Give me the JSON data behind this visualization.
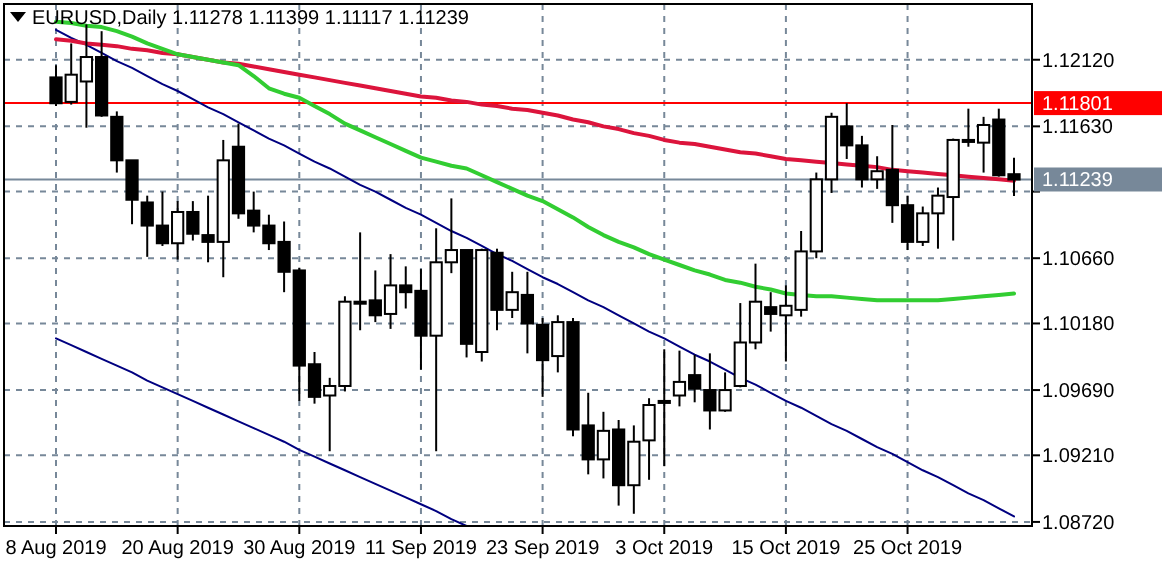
{
  "chart_data": {
    "type": "candlestick",
    "title": "EURUSD,Daily 1.11278 1.11399 1.11117 1.11239",
    "categories": [
      "8 Aug 2019",
      null,
      null,
      null,
      null,
      null,
      null,
      null,
      "20 Aug 2019",
      null,
      null,
      null,
      null,
      null,
      null,
      null,
      "30 Aug 2019",
      null,
      null,
      null,
      null,
      null,
      null,
      null,
      "11 Sep 2019",
      null,
      null,
      null,
      null,
      null,
      null,
      null,
      "23 Sep 2019",
      null,
      null,
      null,
      null,
      null,
      null,
      null,
      "3 Oct 2019",
      null,
      null,
      null,
      null,
      null,
      null,
      null,
      "15 Oct 2019",
      null,
      null,
      null,
      null,
      null,
      null,
      null,
      "25 Oct 2019",
      null,
      null,
      null,
      null,
      null,
      null,
      null
    ],
    "ylim": [
      1.0869,
      1.1253
    ],
    "yticks": [
      {
        "value": 1.0872,
        "label": "1.08720"
      },
      {
        "value": 1.0921,
        "label": "1.09210"
      },
      {
        "value": 1.0969,
        "label": "1.09690"
      },
      {
        "value": 1.1018,
        "label": "1.10180"
      },
      {
        "value": 1.1066,
        "label": "1.10660"
      },
      {
        "value": 1.1115,
        "label": null
      },
      {
        "value": 1.1163,
        "label": "1.11630"
      },
      {
        "value": 1.1212,
        "label": "1.12120"
      }
    ],
    "grid": true,
    "ref_lines": [
      {
        "axis": "y",
        "value": 1.11801,
        "label": "1.11801",
        "color": "#ff0000"
      },
      {
        "axis": "y",
        "value": 1.11239,
        "label": "1.11239",
        "color": "#778899"
      }
    ],
    "series": [
      {
        "type": "line",
        "color": "#000080",
        "values": [
          1.1234,
          1.1228,
          1.1223,
          1.1217,
          1.1211,
          1.1206,
          1.12,
          1.1194,
          1.1189,
          1.1183,
          1.1177,
          1.1172,
          1.1166,
          1.116,
          1.1154,
          1.1149,
          1.1143,
          1.1137,
          1.1132,
          1.1126,
          1.112,
          1.1115,
          1.1109,
          1.1103,
          1.1098,
          1.1092,
          1.1086,
          1.1081,
          1.1075,
          1.1069,
          1.1064,
          1.1058,
          1.1052,
          1.1047,
          1.1041,
          1.1035,
          1.103,
          1.1024,
          1.1018,
          1.1012,
          1.1007,
          1.1001,
          1.0995,
          1.099,
          1.0984,
          1.0978,
          1.0973,
          1.0967,
          1.0961,
          1.0956,
          1.095,
          1.0944,
          1.0939,
          1.0933,
          1.0927,
          1.0922,
          1.0916,
          1.091,
          1.0905,
          1.0899,
          1.0893,
          1.0888,
          1.0882,
          1.0876
        ]
      },
      {
        "type": "line",
        "color": "#000080",
        "values": [
          1.1007,
          1.1002,
          1.0997,
          1.0992,
          1.0987,
          1.0982,
          1.0976,
          1.0971,
          1.0966,
          1.0961,
          1.0956,
          1.0951,
          1.0946,
          1.0941,
          1.0936,
          1.0931,
          1.0925,
          1.092,
          1.0915,
          1.091,
          1.0905,
          1.09,
          1.0895,
          1.089,
          1.0885,
          1.088,
          1.0874,
          1.0869,
          null,
          null,
          null,
          null,
          null,
          null,
          null,
          null,
          null,
          null,
          null,
          null,
          null,
          null,
          null,
          null,
          null,
          null,
          null,
          null,
          null,
          null,
          null,
          null,
          null,
          null,
          null,
          null,
          null,
          null,
          null,
          null,
          null,
          null,
          null,
          null
        ]
      },
      {
        "type": "line",
        "color": "#dc143c",
        "values": [
          1.1227,
          1.1226,
          1.1224,
          1.1223,
          1.1222,
          1.122,
          1.1219,
          1.1217,
          1.1216,
          1.1214,
          1.1212,
          1.121,
          1.1209,
          1.1207,
          1.1205,
          1.1203,
          1.1201,
          1.1199,
          1.1197,
          1.1195,
          1.1193,
          1.1191,
          1.1189,
          1.1187,
          1.1185,
          1.1184,
          1.1182,
          1.1181,
          1.1179,
          1.1178,
          1.1176,
          1.1175,
          1.1173,
          1.1171,
          1.1168,
          1.1166,
          1.1163,
          1.1161,
          1.1158,
          1.1156,
          1.1153,
          1.1151,
          1.115,
          1.1148,
          1.1146,
          1.1144,
          1.1143,
          1.1141,
          1.1139,
          1.1138,
          1.1137,
          1.1136,
          1.1135,
          1.1134,
          1.1133,
          1.1131,
          1.113,
          1.1129,
          1.1128,
          1.1127,
          1.1126,
          1.1125,
          1.1124,
          1.1123
        ]
      },
      {
        "type": "line",
        "color": "#32cd32",
        "values": [
          1.124,
          1.1239,
          1.1237,
          1.1236,
          1.1233,
          1.1229,
          1.1224,
          1.122,
          1.1216,
          1.1214,
          1.1212,
          1.121,
          1.1208,
          1.12,
          1.1191,
          1.1187,
          1.1184,
          1.1178,
          1.1172,
          1.1165,
          1.116,
          1.1155,
          1.115,
          1.1145,
          1.114,
          1.1137,
          1.1134,
          1.1132,
          1.1127,
          1.1122,
          1.1117,
          1.1112,
          1.1108,
          1.1102,
          1.1096,
          1.1089,
          1.1083,
          1.1078,
          1.1074,
          1.1069,
          1.1065,
          1.1061,
          1.1057,
          1.1054,
          1.105,
          1.1048,
          1.1045,
          1.1043,
          1.104,
          1.1039,
          1.1038,
          1.1038,
          1.1037,
          1.1036,
          1.1035,
          1.1035,
          1.1035,
          1.1035,
          1.1035,
          1.1036,
          1.1037,
          1.1038,
          1.1039,
          1.104
        ]
      }
    ],
    "ohlc": [
      [
        1.1199,
        1.1208,
        1.1178,
        1.118
      ],
      [
        1.1181,
        1.1224,
        1.1179,
        1.1201
      ],
      [
        1.1196,
        1.1238,
        1.1162,
        1.1214
      ],
      [
        1.1214,
        1.1233,
        1.117,
        1.1171
      ],
      [
        1.117,
        1.1174,
        1.1129,
        1.1138
      ],
      [
        1.1138,
        1.1138,
        1.1091,
        1.1109
      ],
      [
        1.1107,
        1.1112,
        1.1067,
        1.109
      ],
      [
        1.109,
        1.1115,
        1.1075,
        1.1077
      ],
      [
        1.1077,
        1.1108,
        1.1065,
        1.11
      ],
      [
        1.11,
        1.1108,
        1.1079,
        1.1084
      ],
      [
        1.1083,
        1.1112,
        1.1063,
        1.1078
      ],
      [
        1.1078,
        1.1153,
        1.1052,
        1.1138
      ],
      [
        1.1148,
        1.1165,
        1.1095,
        1.1099
      ],
      [
        1.1101,
        1.1115,
        1.1085,
        1.109
      ],
      [
        1.109,
        1.1098,
        1.1072,
        1.1077
      ],
      [
        1.1078,
        1.1093,
        1.1041,
        1.1056
      ],
      [
        1.1057,
        1.1059,
        1.0961,
        1.0987
      ],
      [
        1.0988,
        1.0997,
        1.0959,
        1.0964
      ],
      [
        1.0965,
        1.0978,
        1.0924,
        1.0972
      ],
      [
        1.0972,
        1.1038,
        1.0968,
        1.1034
      ],
      [
        1.1034,
        1.1085,
        1.1013,
        1.1034
      ],
      [
        1.1035,
        1.1057,
        1.1019,
        1.1024
      ],
      [
        1.1025,
        1.1069,
        1.1014,
        1.1046
      ],
      [
        1.1046,
        1.106,
        1.1029,
        1.1041
      ],
      [
        1.1042,
        1.1058,
        1.0984,
        1.1009
      ],
      [
        1.1009,
        1.1088,
        1.0924,
        1.1063
      ],
      [
        1.1063,
        1.111,
        1.1055,
        1.1072
      ],
      [
        1.1072,
        1.1072,
        1.0993,
        1.1003
      ],
      [
        1.0997,
        1.1073,
        1.099,
        1.1072
      ],
      [
        1.107,
        1.1073,
        1.1013,
        1.1028
      ],
      [
        1.1028,
        1.1056,
        1.1022,
        1.1041
      ],
      [
        1.1039,
        1.1056,
        1.0996,
        1.1018
      ],
      [
        1.1017,
        1.1022,
        1.0964,
        1.0991
      ],
      [
        1.0994,
        1.1024,
        1.0982,
        1.1019
      ],
      [
        1.1019,
        1.1022,
        1.0935,
        1.094
      ],
      [
        1.0943,
        1.0967,
        1.0907,
        1.0918
      ],
      [
        1.0918,
        1.0953,
        1.0904,
        1.0939
      ],
      [
        1.094,
        1.0947,
        1.0884,
        1.0899
      ],
      [
        1.0899,
        1.0943,
        1.0878,
        1.0931
      ],
      [
        1.0932,
        1.0963,
        1.0903,
        1.0958
      ],
      [
        1.0961,
        1.0999,
        1.0913,
        1.096
      ],
      [
        1.0965,
        1.0998,
        1.0957,
        1.0975
      ],
      [
        1.098,
        1.0995,
        1.096,
        1.097
      ],
      [
        1.0969,
        1.0996,
        1.094,
        1.0954
      ],
      [
        1.0954,
        1.0982,
        1.0953,
        1.0969
      ],
      [
        1.0972,
        1.1033,
        1.0971,
        1.1004
      ],
      [
        1.1004,
        1.1062,
        1.0999,
        1.1034
      ],
      [
        1.103,
        1.1041,
        1.1012,
        1.1025
      ],
      [
        1.1024,
        1.1046,
        1.099,
        1.1031
      ],
      [
        1.1028,
        1.1086,
        1.1023,
        1.1071
      ],
      [
        1.1071,
        1.1129,
        1.1066,
        1.1124
      ],
      [
        1.1124,
        1.1173,
        1.1114,
        1.117
      ],
      [
        1.1163,
        1.118,
        1.1139,
        1.1149
      ],
      [
        1.1149,
        1.1156,
        1.1118,
        1.1124
      ],
      [
        1.1124,
        1.1141,
        1.1117,
        1.113
      ],
      [
        1.1131,
        1.1164,
        1.1092,
        1.1105
      ],
      [
        1.1105,
        1.1112,
        1.1072,
        1.1078
      ],
      [
        1.1078,
        1.1104,
        1.1075,
        1.1099
      ],
      [
        1.1099,
        1.1118,
        1.1073,
        1.1112
      ],
      [
        1.1111,
        1.1154,
        1.1079,
        1.1153
      ],
      [
        1.1152,
        1.1176,
        1.1148,
        1.1153
      ],
      [
        1.1151,
        1.117,
        1.1129,
        1.1164
      ],
      [
        1.1168,
        1.1176,
        1.1126,
        1.1127
      ],
      [
        1.11278,
        1.11399,
        1.11117,
        1.11239
      ]
    ]
  }
}
